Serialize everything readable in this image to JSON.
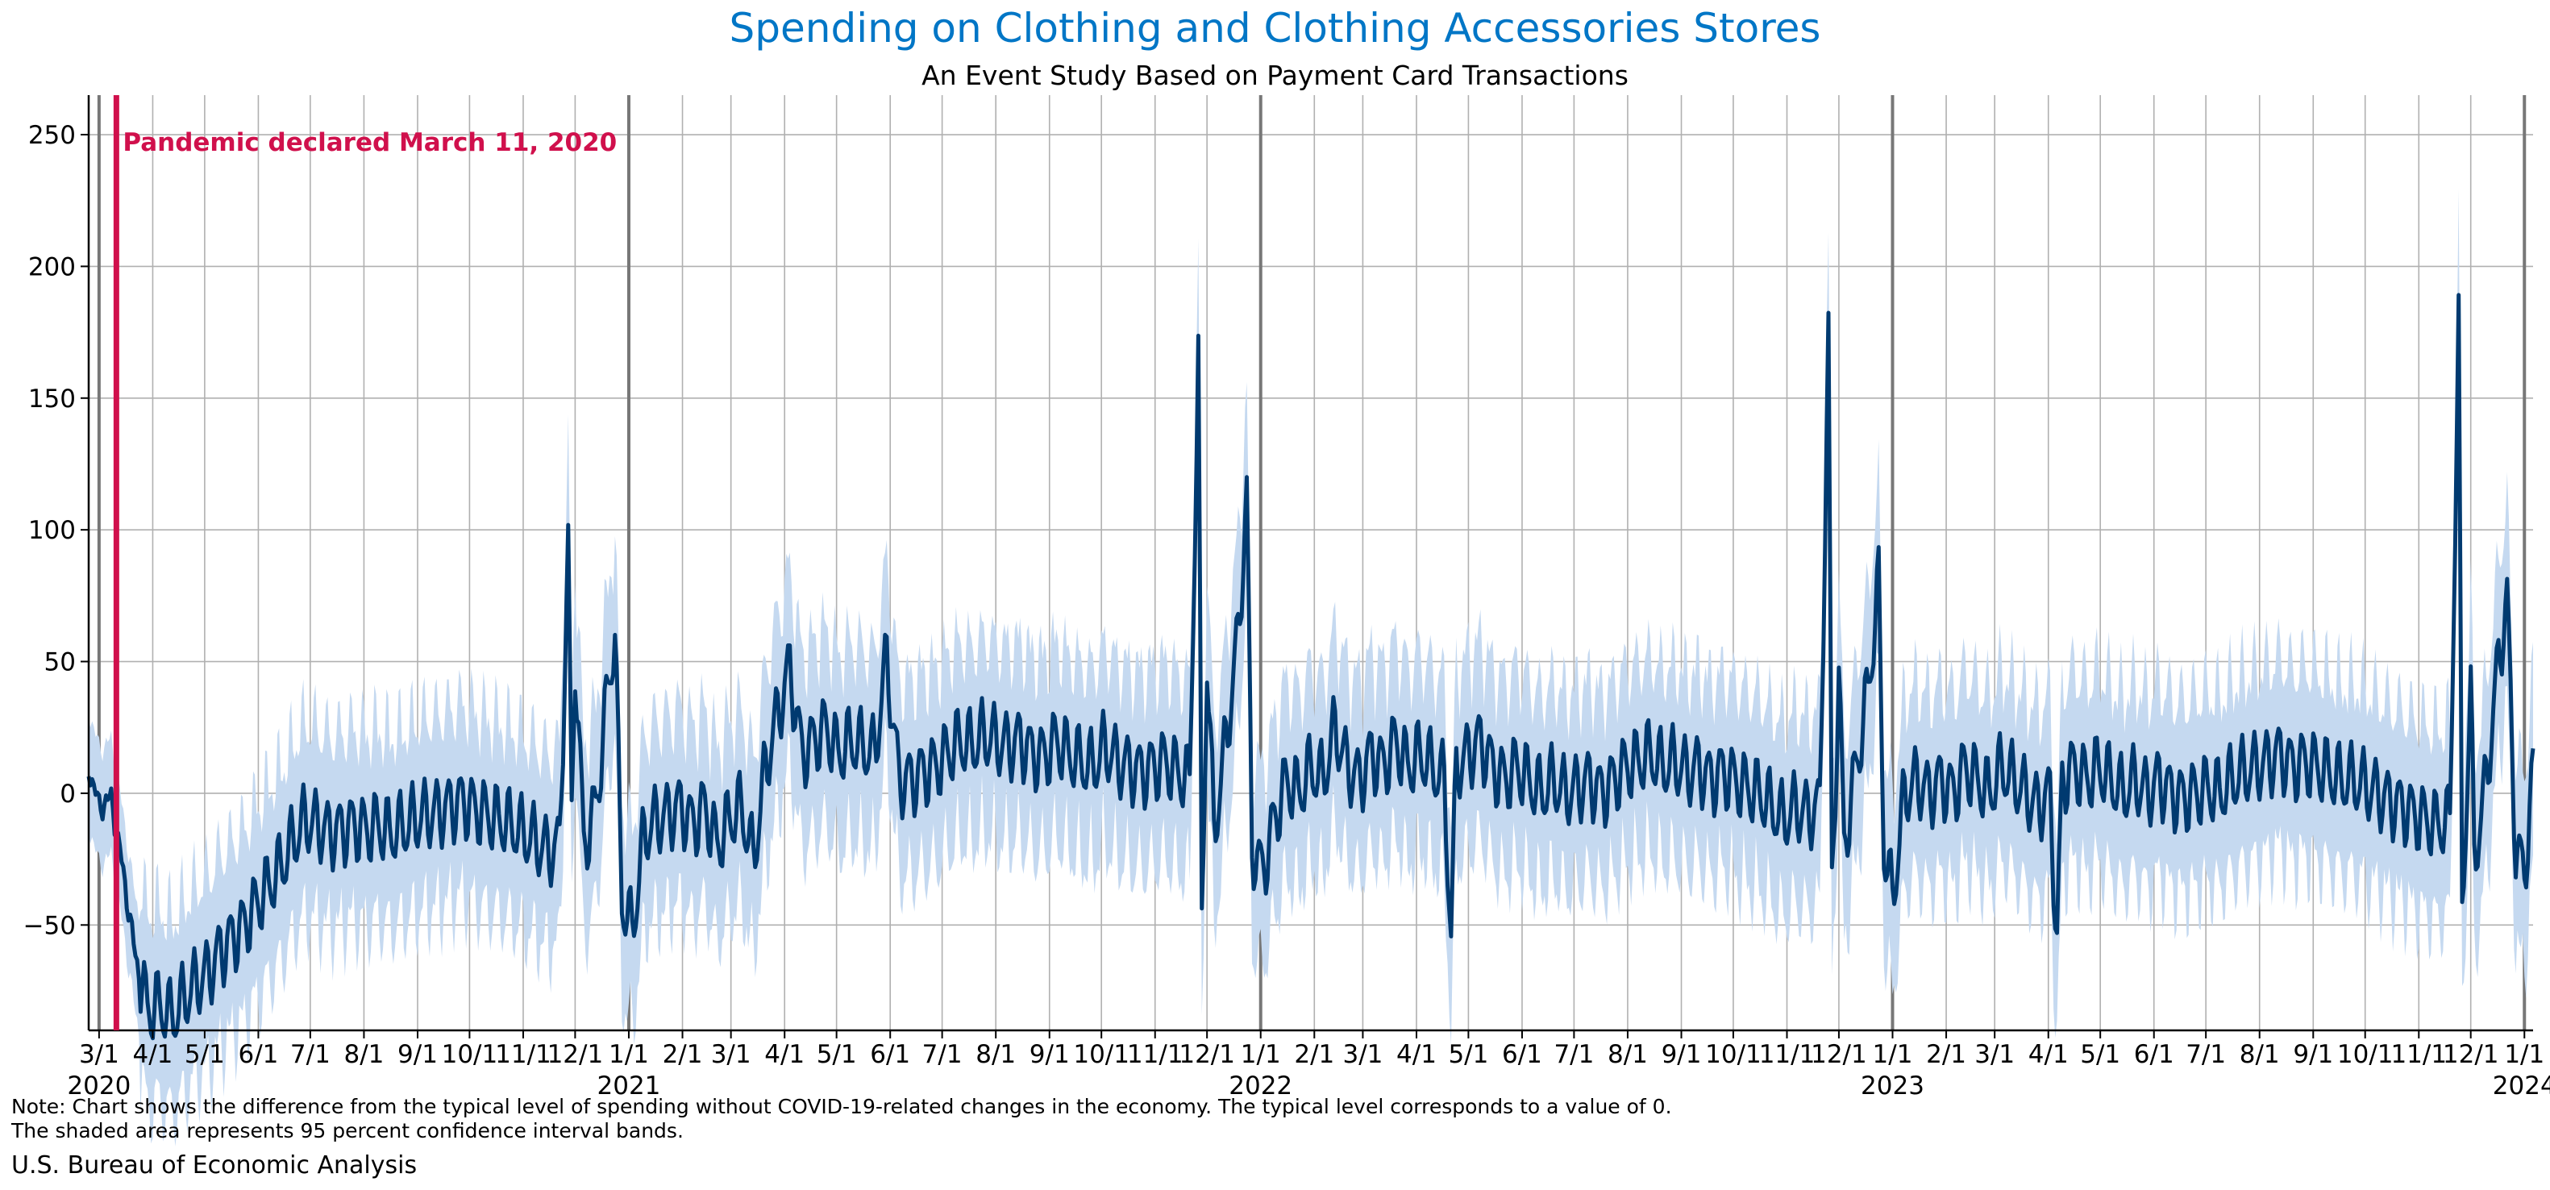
{
  "page": {
    "title": "Spending on Clothing and Clothing Accessories Stores",
    "subtitle": "An Event Study Based on Payment Card Transactions",
    "note_line_1": "Note: Chart shows the difference from the typical level of spending without COVID-19-related changes in the economy. The typical level corresponds to a value of 0.",
    "note_line_2": "The shaded area represents 95 percent confidence interval bands.",
    "source": "U.S. Bureau of Economic Analysis"
  },
  "colors": {
    "title": "#0076c6",
    "line": "#003a70",
    "band": "#c5d9f0",
    "event": "#d0104c",
    "grid": "#b0b0b0",
    "year_line": "#777777"
  },
  "chart_data": {
    "type": "line",
    "title": "Spending on Clothing and Clothing Accessories Stores",
    "subtitle": "An Event Study Based on Payment Card Transactions",
    "xlabel": "",
    "ylabel": "",
    "x_range": [
      "2020-02-24",
      "2024-01-06"
    ],
    "ylim": [
      -90,
      265
    ],
    "y_ticks": [
      -50,
      0,
      50,
      100,
      150,
      200,
      250
    ],
    "grid": true,
    "x_ticks": [
      {
        "date": "2020-03-01",
        "label": "3/1",
        "year": "2020"
      },
      {
        "date": "2020-04-01",
        "label": "4/1"
      },
      {
        "date": "2020-05-01",
        "label": "5/1"
      },
      {
        "date": "2020-06-01",
        "label": "6/1"
      },
      {
        "date": "2020-07-01",
        "label": "7/1"
      },
      {
        "date": "2020-08-01",
        "label": "8/1"
      },
      {
        "date": "2020-09-01",
        "label": "9/1"
      },
      {
        "date": "2020-10-01",
        "label": "10/1"
      },
      {
        "date": "2020-11-01",
        "label": "11/1"
      },
      {
        "date": "2020-12-01",
        "label": "12/1"
      },
      {
        "date": "2021-01-01",
        "label": "1/1",
        "year": "2021"
      },
      {
        "date": "2021-02-01",
        "label": "2/1"
      },
      {
        "date": "2021-03-01",
        "label": "3/1"
      },
      {
        "date": "2021-04-01",
        "label": "4/1"
      },
      {
        "date": "2021-05-01",
        "label": "5/1"
      },
      {
        "date": "2021-06-01",
        "label": "6/1"
      },
      {
        "date": "2021-07-01",
        "label": "7/1"
      },
      {
        "date": "2021-08-01",
        "label": "8/1"
      },
      {
        "date": "2021-09-01",
        "label": "9/1"
      },
      {
        "date": "2021-10-01",
        "label": "10/1"
      },
      {
        "date": "2021-11-01",
        "label": "11/1"
      },
      {
        "date": "2021-12-01",
        "label": "12/1"
      },
      {
        "date": "2022-01-01",
        "label": "1/1",
        "year": "2022"
      },
      {
        "date": "2022-02-01",
        "label": "2/1"
      },
      {
        "date": "2022-03-01",
        "label": "3/1"
      },
      {
        "date": "2022-04-01",
        "label": "4/1"
      },
      {
        "date": "2022-05-01",
        "label": "5/1"
      },
      {
        "date": "2022-06-01",
        "label": "6/1"
      },
      {
        "date": "2022-07-01",
        "label": "7/1"
      },
      {
        "date": "2022-08-01",
        "label": "8/1"
      },
      {
        "date": "2022-09-01",
        "label": "9/1"
      },
      {
        "date": "2022-10-01",
        "label": "10/1"
      },
      {
        "date": "2022-11-01",
        "label": "11/1"
      },
      {
        "date": "2022-12-01",
        "label": "12/1"
      },
      {
        "date": "2023-01-01",
        "label": "1/1",
        "year": "2023"
      },
      {
        "date": "2023-02-01",
        "label": "2/1"
      },
      {
        "date": "2023-03-01",
        "label": "3/1"
      },
      {
        "date": "2023-04-01",
        "label": "4/1"
      },
      {
        "date": "2023-05-01",
        "label": "5/1"
      },
      {
        "date": "2023-06-01",
        "label": "6/1"
      },
      {
        "date": "2023-07-01",
        "label": "7/1"
      },
      {
        "date": "2023-08-01",
        "label": "8/1"
      },
      {
        "date": "2023-09-01",
        "label": "9/1"
      },
      {
        "date": "2023-10-01",
        "label": "10/1"
      },
      {
        "date": "2023-11-01",
        "label": "11/1"
      },
      {
        "date": "2023-12-01",
        "label": "12/1"
      },
      {
        "date": "2024-01-01",
        "label": "1/1",
        "year": "2024"
      }
    ],
    "event": {
      "date": "2020-03-11",
      "label": "Pandemic declared March 11, 2020"
    },
    "series": [
      {
        "kind": "line",
        "points": [
          [
            "2020-02-24",
            10
          ],
          [
            "2020-03-01",
            -5
          ],
          [
            "2020-03-08",
            -2
          ],
          [
            "2020-03-15",
            -30
          ],
          [
            "2020-03-22",
            -62
          ],
          [
            "2020-03-29",
            -82
          ],
          [
            "2020-04-05",
            -80
          ],
          [
            "2020-04-12",
            -85
          ],
          [
            "2020-04-19",
            -78
          ],
          [
            "2020-04-26",
            -72
          ],
          [
            "2020-05-03",
            -68
          ],
          [
            "2020-05-10",
            -60
          ],
          [
            "2020-05-17",
            -55
          ],
          [
            "2020-05-24",
            -50
          ],
          [
            "2020-05-31",
            -42
          ],
          [
            "2020-06-07",
            -35
          ],
          [
            "2020-06-14",
            -28
          ],
          [
            "2020-06-21",
            -18
          ],
          [
            "2020-06-28",
            -10
          ],
          [
            "2020-07-05",
            -12
          ],
          [
            "2020-07-12",
            -15
          ],
          [
            "2020-07-19",
            -14
          ],
          [
            "2020-07-26",
            -12
          ],
          [
            "2020-08-02",
            -14
          ],
          [
            "2020-08-09",
            -12
          ],
          [
            "2020-08-16",
            -15
          ],
          [
            "2020-08-23",
            -13
          ],
          [
            "2020-08-30",
            -10
          ],
          [
            "2020-09-06",
            -8
          ],
          [
            "2020-09-13",
            -7
          ],
          [
            "2020-09-20",
            -5
          ],
          [
            "2020-09-27",
            -3
          ],
          [
            "2020-10-04",
            -6
          ],
          [
            "2020-10-11",
            -8
          ],
          [
            "2020-10-18",
            -10
          ],
          [
            "2020-10-25",
            -12
          ],
          [
            "2020-11-01",
            -15
          ],
          [
            "2020-11-08",
            -18
          ],
          [
            "2020-11-15",
            -22
          ],
          [
            "2020-11-22",
            -20
          ],
          [
            "2020-11-27",
            94
          ],
          [
            "2020-11-29",
            -10
          ],
          [
            "2020-12-01",
            53
          ],
          [
            "2020-12-06",
            -20
          ],
          [
            "2020-12-13",
            -5
          ],
          [
            "2020-12-20",
            40
          ],
          [
            "2020-12-24",
            62
          ],
          [
            "2020-12-28",
            -40
          ],
          [
            "2021-01-03",
            -52
          ],
          [
            "2021-01-10",
            -15
          ],
          [
            "2021-01-17",
            -10
          ],
          [
            "2021-01-24",
            -8
          ],
          [
            "2021-01-31",
            -5
          ],
          [
            "2021-02-07",
            -12
          ],
          [
            "2021-02-14",
            -5
          ],
          [
            "2021-02-21",
            -20
          ],
          [
            "2021-02-28",
            -10
          ],
          [
            "2021-03-07",
            -5
          ],
          [
            "2021-03-14",
            -25
          ],
          [
            "2021-03-21",
            10
          ],
          [
            "2021-03-28",
            30
          ],
          [
            "2021-04-04",
            48
          ],
          [
            "2021-04-11",
            15
          ],
          [
            "2021-04-18",
            20
          ],
          [
            "2021-04-25",
            25
          ],
          [
            "2021-05-02",
            15
          ],
          [
            "2021-05-09",
            20
          ],
          [
            "2021-05-16",
            18
          ],
          [
            "2021-05-23",
            15
          ],
          [
            "2021-05-30",
            52
          ],
          [
            "2021-06-06",
            5
          ],
          [
            "2021-06-13",
            5
          ],
          [
            "2021-06-20",
            8
          ],
          [
            "2021-06-27",
            10
          ],
          [
            "2021-07-04",
            15
          ],
          [
            "2021-07-11",
            20
          ],
          [
            "2021-07-18",
            18
          ],
          [
            "2021-07-25",
            22
          ],
          [
            "2021-08-01",
            20
          ],
          [
            "2021-08-08",
            18
          ],
          [
            "2021-08-15",
            20
          ],
          [
            "2021-08-22",
            15
          ],
          [
            "2021-08-29",
            14
          ],
          [
            "2021-09-05",
            20
          ],
          [
            "2021-09-12",
            15
          ],
          [
            "2021-09-19",
            12
          ],
          [
            "2021-09-26",
            10
          ],
          [
            "2021-10-03",
            18
          ],
          [
            "2021-10-10",
            12
          ],
          [
            "2021-10-17",
            10
          ],
          [
            "2021-10-24",
            8
          ],
          [
            "2021-10-31",
            10
          ],
          [
            "2021-11-07",
            12
          ],
          [
            "2021-11-14",
            8
          ],
          [
            "2021-11-21",
            5
          ],
          [
            "2021-11-26",
            163
          ],
          [
            "2021-11-28",
            -47
          ],
          [
            "2021-12-01",
            50
          ],
          [
            "2021-12-05",
            -15
          ],
          [
            "2021-12-12",
            20
          ],
          [
            "2021-12-19",
            60
          ],
          [
            "2021-12-24",
            113
          ],
          [
            "2021-12-27",
            -20
          ],
          [
            "2022-01-02",
            -30
          ],
          [
            "2022-01-09",
            -10
          ],
          [
            "2022-01-16",
            5
          ],
          [
            "2022-01-23",
            0
          ],
          [
            "2022-01-30",
            10
          ],
          [
            "2022-02-06",
            5
          ],
          [
            "2022-02-13",
            25
          ],
          [
            "2022-02-20",
            10
          ],
          [
            "2022-02-27",
            5
          ],
          [
            "2022-03-06",
            15
          ],
          [
            "2022-03-13",
            10
          ],
          [
            "2022-03-20",
            20
          ],
          [
            "2022-03-27",
            10
          ],
          [
            "2022-04-03",
            15
          ],
          [
            "2022-04-10",
            10
          ],
          [
            "2022-04-17",
            5
          ],
          [
            "2022-04-21",
            -53
          ],
          [
            "2022-04-24",
            10
          ],
          [
            "2022-05-01",
            15
          ],
          [
            "2022-05-08",
            20
          ],
          [
            "2022-05-15",
            10
          ],
          [
            "2022-05-22",
            5
          ],
          [
            "2022-05-29",
            10
          ],
          [
            "2022-06-05",
            5
          ],
          [
            "2022-06-12",
            0
          ],
          [
            "2022-06-19",
            5
          ],
          [
            "2022-06-26",
            0
          ],
          [
            "2022-07-03",
            2
          ],
          [
            "2022-07-10",
            5
          ],
          [
            "2022-07-17",
            0
          ],
          [
            "2022-07-24",
            5
          ],
          [
            "2022-07-31",
            10
          ],
          [
            "2022-08-07",
            12
          ],
          [
            "2022-08-14",
            15
          ],
          [
            "2022-08-21",
            10
          ],
          [
            "2022-08-28",
            12
          ],
          [
            "2022-09-04",
            8
          ],
          [
            "2022-09-11",
            10
          ],
          [
            "2022-09-18",
            5
          ],
          [
            "2022-09-25",
            8
          ],
          [
            "2022-10-02",
            5
          ],
          [
            "2022-10-09",
            2
          ],
          [
            "2022-10-16",
            0
          ],
          [
            "2022-10-23",
            -5
          ],
          [
            "2022-10-30",
            -10
          ],
          [
            "2022-11-06",
            -5
          ],
          [
            "2022-11-13",
            -8
          ],
          [
            "2022-11-20",
            -5
          ],
          [
            "2022-11-25",
            174
          ],
          [
            "2022-11-27",
            -35
          ],
          [
            "2022-12-01",
            45
          ],
          [
            "2022-12-04",
            -20
          ],
          [
            "2022-12-11",
            10
          ],
          [
            "2022-12-18",
            40
          ],
          [
            "2022-12-24",
            80
          ],
          [
            "2022-12-27",
            -20
          ],
          [
            "2023-01-01",
            -40
          ],
          [
            "2023-01-08",
            0
          ],
          [
            "2023-01-15",
            5
          ],
          [
            "2023-01-22",
            0
          ],
          [
            "2023-01-29",
            5
          ],
          [
            "2023-02-05",
            0
          ],
          [
            "2023-02-12",
            10
          ],
          [
            "2023-02-19",
            5
          ],
          [
            "2023-02-26",
            0
          ],
          [
            "2023-03-05",
            10
          ],
          [
            "2023-03-12",
            5
          ],
          [
            "2023-03-19",
            0
          ],
          [
            "2023-03-26",
            -5
          ],
          [
            "2023-04-02",
            0
          ],
          [
            "2023-04-06",
            -56
          ],
          [
            "2023-04-09",
            5
          ],
          [
            "2023-04-16",
            10
          ],
          [
            "2023-04-23",
            5
          ],
          [
            "2023-04-30",
            10
          ],
          [
            "2023-05-07",
            5
          ],
          [
            "2023-05-14",
            0
          ],
          [
            "2023-05-21",
            5
          ],
          [
            "2023-05-28",
            0
          ],
          [
            "2023-06-04",
            5
          ],
          [
            "2023-06-11",
            0
          ],
          [
            "2023-06-18",
            -2
          ],
          [
            "2023-06-25",
            0
          ],
          [
            "2023-07-02",
            2
          ],
          [
            "2023-07-09",
            0
          ],
          [
            "2023-07-16",
            5
          ],
          [
            "2023-07-23",
            8
          ],
          [
            "2023-07-30",
            10
          ],
          [
            "2023-08-06",
            12
          ],
          [
            "2023-08-13",
            15
          ],
          [
            "2023-08-20",
            10
          ],
          [
            "2023-08-27",
            12
          ],
          [
            "2023-09-03",
            10
          ],
          [
            "2023-09-10",
            8
          ],
          [
            "2023-09-17",
            5
          ],
          [
            "2023-09-24",
            5
          ],
          [
            "2023-10-01",
            3
          ],
          [
            "2023-10-08",
            0
          ],
          [
            "2023-10-15",
            -3
          ],
          [
            "2023-10-22",
            -5
          ],
          [
            "2023-10-29",
            -8
          ],
          [
            "2023-11-05",
            -10
          ],
          [
            "2023-11-12",
            -12
          ],
          [
            "2023-11-19",
            -10
          ],
          [
            "2023-11-24",
            179
          ],
          [
            "2023-11-26",
            -45
          ],
          [
            "2023-12-01",
            40
          ],
          [
            "2023-12-03",
            -25
          ],
          [
            "2023-12-10",
            5
          ],
          [
            "2023-12-17",
            50
          ],
          [
            "2023-12-22",
            74
          ],
          [
            "2023-12-27",
            -22
          ],
          [
            "2024-01-01",
            -30
          ],
          [
            "2024-01-06",
            8
          ]
        ]
      }
    ]
  }
}
